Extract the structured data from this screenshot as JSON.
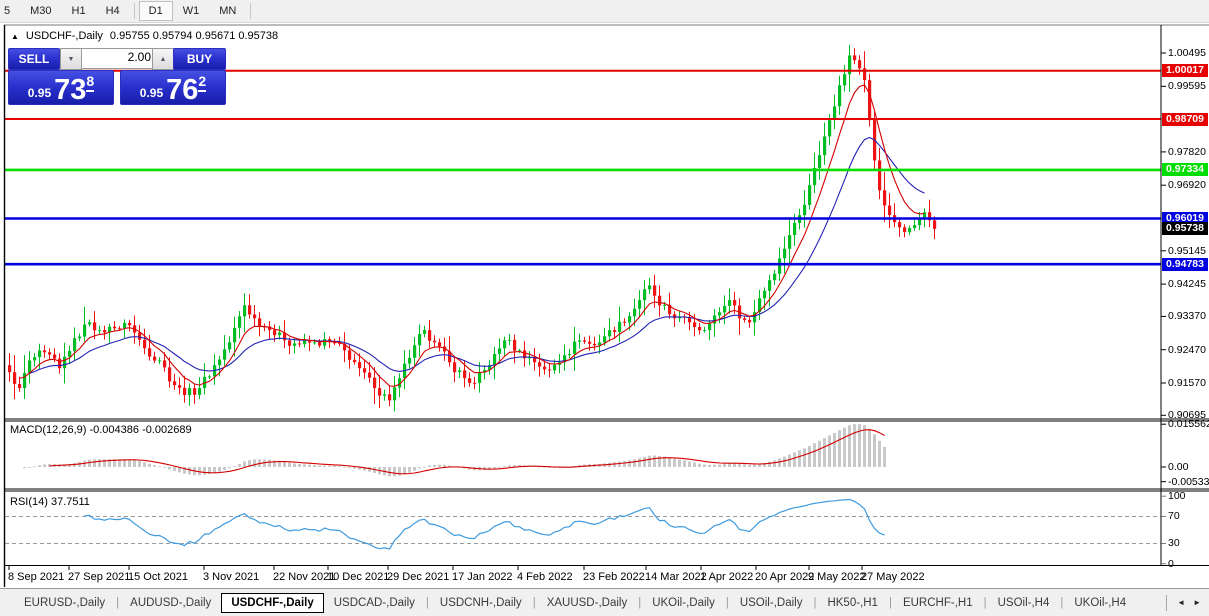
{
  "toolbar": {
    "timeframes": [
      "5",
      "M30",
      "H1",
      "H4",
      "D1",
      "W1",
      "MN"
    ],
    "active": "D1"
  },
  "chart_header": {
    "collapse_icon": "▲",
    "symbol_label": "USDCHF-,Daily",
    "ohlc": "0.95755 0.95794 0.95671 0.95738"
  },
  "trade_widget": {
    "sell_label": "SELL",
    "buy_label": "BUY",
    "volume": "2.00",
    "sell_price": {
      "small": "0.95",
      "big": "73",
      "sup": "8"
    },
    "buy_price": {
      "small": "0.95",
      "big": "76",
      "sup": "2"
    }
  },
  "colors": {
    "candle_up": "#00bd23",
    "candle_down": "#ee1414",
    "ma_fast": "#d40000",
    "ma_slow": "#2323b4",
    "macd_hist": "#c9c9c9",
    "macd_signal": "#d40000",
    "rsi_line": "#3e9ade",
    "level_red": "#e60000",
    "level_green": "#00dd00",
    "level_blue": "#0000e0",
    "current_black": "#000000"
  },
  "y_axis": {
    "ticks": [
      "1.00495",
      "0.99595",
      "0.97820",
      "0.96920",
      "0.95145",
      "0.94245",
      "0.93370",
      "0.92470",
      "0.91570",
      "0.90695"
    ]
  },
  "levels": [
    {
      "label": "1.00017",
      "price": 1.00017,
      "color": "#e60000"
    },
    {
      "label": "0.98709",
      "price": 0.98709,
      "color": "#e60000"
    },
    {
      "label": "0.97334",
      "price": 0.97334,
      "color": "#00dd00"
    },
    {
      "label": "0.96019",
      "price": 0.96019,
      "color": "#0000e0"
    },
    {
      "label": "0.94783",
      "price": 0.94783,
      "color": "#0000e0"
    }
  ],
  "current_price": {
    "label": "0.95738",
    "price": 0.95738
  },
  "macd_panel": {
    "label": "MACD(12,26,9) -0.004386 -0.002689",
    "axis": [
      {
        "label": "0.015562",
        "value": 0.015562
      },
      {
        "label": "0.00",
        "value": 0
      },
      {
        "label": "-0.005335",
        "value": -0.005335
      }
    ]
  },
  "rsi_panel": {
    "label": "RSI(14) 37.7511",
    "axis": [
      {
        "label": "100",
        "value": 100
      },
      {
        "label": "70",
        "value": 70
      },
      {
        "label": "30",
        "value": 30
      },
      {
        "label": "0",
        "value": 0
      }
    ],
    "dashed_levels": [
      70,
      30
    ]
  },
  "x_axis": {
    "labels": [
      "8 Sep 2021",
      "27 Sep 2021",
      "15 Oct 2021",
      "3 Nov 2021",
      "22 Nov 2021",
      "10 Dec 2021",
      "29 Dec 2021",
      "17 Jan 2022",
      "4 Feb 2022",
      "23 Feb 2022",
      "14 Mar 2022",
      "1 Apr 2022",
      "20 Apr 2022",
      "9 May 2022",
      "27 May 2022"
    ]
  },
  "tabs": {
    "items": [
      "EURUSD-,Daily",
      "AUDUSD-,Daily",
      "USDCHF-,Daily",
      "USDCAD-,Daily",
      "USDCNH-,Daily",
      "XAUUSD-,Daily",
      "UKOil-,Daily",
      "USOil-,Daily",
      "HK50-,H1",
      "EURCHF-,H1",
      "USOil-,H4",
      "UKOil-,H4"
    ],
    "active": "USDCHF-,Daily",
    "scroll_left_icon": "◄",
    "scroll_right_icon": "►"
  },
  "chart_data": {
    "type": "candlestick",
    "symbol": "USDCHF",
    "timeframe": "Daily",
    "current_ohlc": {
      "open": 0.95755,
      "high": 0.95794,
      "low": 0.95671,
      "close": 0.95738
    },
    "price_axis_ticks": [
      1.00495,
      0.99595,
      0.9782,
      0.9692,
      0.95145,
      0.94245,
      0.9337,
      0.9247,
      0.9157,
      0.90695
    ],
    "horizontal_levels": [
      1.00017,
      0.98709,
      0.97334,
      0.96019,
      0.94783
    ],
    "bid_price": 0.95738,
    "indicators": [
      {
        "name": "MACD",
        "params": [
          12,
          26,
          9
        ],
        "values": [
          -0.004386,
          -0.002689
        ],
        "scale": [
          -0.005335,
          0.015562
        ]
      },
      {
        "name": "RSI",
        "params": [
          14
        ],
        "value": 37.7511,
        "scale": [
          0,
          100
        ],
        "levels": [
          30,
          70
        ]
      }
    ],
    "close_anchors": [
      [
        0,
        0.9186
      ],
      [
        2,
        0.9143
      ],
      [
        4,
        0.9218
      ],
      [
        7,
        0.924
      ],
      [
        10,
        0.9197
      ],
      [
        13,
        0.9278
      ],
      [
        16,
        0.9321
      ],
      [
        18,
        0.93
      ],
      [
        21,
        0.9305
      ],
      [
        24,
        0.9313
      ],
      [
        27,
        0.9251
      ],
      [
        30,
        0.9218
      ],
      [
        33,
        0.9151
      ],
      [
        35,
        0.9124
      ],
      [
        38,
        0.9143
      ],
      [
        41,
        0.9205
      ],
      [
        44,
        0.9267
      ],
      [
        47,
        0.9367
      ],
      [
        49,
        0.9332
      ],
      [
        52,
        0.93
      ],
      [
        55,
        0.9272
      ],
      [
        58,
        0.9262
      ],
      [
        61,
        0.9267
      ],
      [
        64,
        0.9267
      ],
      [
        67,
        0.9245
      ],
      [
        70,
        0.9197
      ],
      [
        73,
        0.9143
      ],
      [
        76,
        0.911
      ],
      [
        78,
        0.917
      ],
      [
        81,
        0.9259
      ],
      [
        83,
        0.93
      ],
      [
        85,
        0.9267
      ],
      [
        88,
        0.9213
      ],
      [
        91,
        0.917
      ],
      [
        93,
        0.9157
      ],
      [
        96,
        0.9205
      ],
      [
        99,
        0.9272
      ],
      [
        102,
        0.9245
      ],
      [
        105,
        0.9213
      ],
      [
        108,
        0.9191
      ],
      [
        111,
        0.9232
      ],
      [
        114,
        0.9272
      ],
      [
        117,
        0.9259
      ],
      [
        120,
        0.93
      ],
      [
        123,
        0.9321
      ],
      [
        126,
        0.9381
      ],
      [
        128,
        0.9421
      ],
      [
        130,
        0.9367
      ],
      [
        133,
        0.9332
      ],
      [
        136,
        0.9321
      ],
      [
        139,
        0.93
      ],
      [
        142,
        0.9348
      ],
      [
        144,
        0.9381
      ],
      [
        146,
        0.9332
      ],
      [
        148,
        0.9321
      ],
      [
        150,
        0.9386
      ],
      [
        152,
        0.9435
      ],
      [
        154,
        0.9494
      ],
      [
        156,
        0.9557
      ],
      [
        158,
        0.9611
      ],
      [
        160,
        0.9692
      ],
      [
        162,
        0.9773
      ],
      [
        164,
        0.9868
      ],
      [
        166,
        0.9962
      ],
      [
        168,
        1.0043
      ],
      [
        169,
        1.003
      ],
      [
        170,
        1.0008
      ],
      [
        171,
        0.9976
      ],
      [
        172,
        0.9868
      ],
      [
        173,
        0.9759
      ],
      [
        174,
        0.9678
      ],
      [
        175,
        0.9637
      ],
      [
        176,
        0.9611
      ],
      [
        177,
        0.9592
      ],
      [
        178,
        0.9578
      ],
      [
        179,
        0.9565
      ],
      [
        180,
        0.9576
      ],
      [
        181,
        0.9584
      ],
      [
        182,
        0.9603
      ],
      [
        183,
        0.9619
      ],
      [
        184,
        0.9597
      ],
      [
        185,
        0.95738
      ]
    ],
    "bar_count": 186
  }
}
